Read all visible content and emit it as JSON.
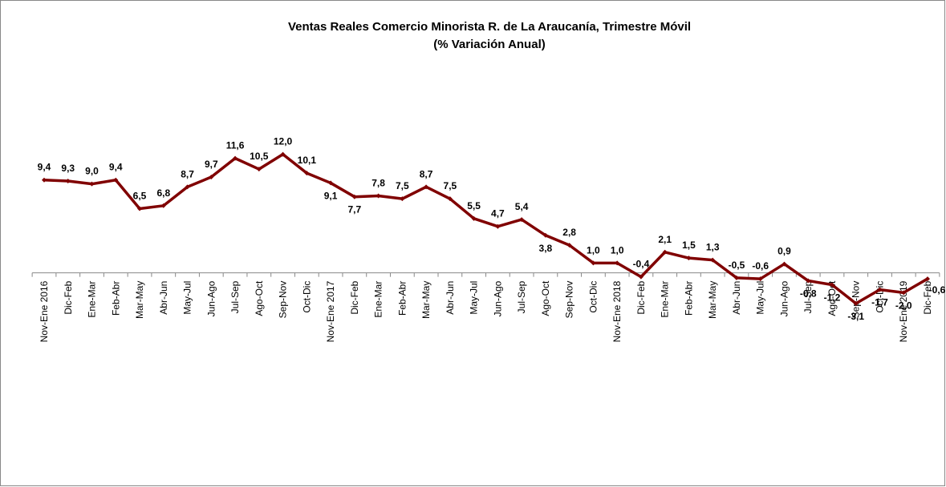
{
  "chart_data": {
    "type": "line",
    "title": "Ventas Reales Comercio Minorista  R. de La Araucanía, Trimestre Móvil",
    "subtitle": "(% Variación Anual)",
    "categories": [
      "Nov-Ene 2016",
      "Dic-Feb",
      "Ene-Mar",
      "Feb-Abr",
      "Mar-May",
      "Abr-Jun",
      "May-Jul",
      "Jun-Ago",
      "Jul-Sep",
      "Ago-Oct",
      "Sep-Nov",
      "Oct-Dic",
      "Nov-Ene 2017",
      "Dic-Feb",
      "Ene-Mar",
      "Feb-Abr",
      "Mar-May",
      "Abr-Jun",
      "May-Jul",
      "Jun-Ago",
      "Jul-Sep",
      "Ago-Oct",
      "Sep-Nov",
      "Oct-Dic",
      "Nov-Ene 2018",
      "Dic-Feb",
      "Ene-Mar",
      "Feb-Abr",
      "Mar-May",
      "Abr-Jun",
      "May-Jul",
      "Jun-Ago",
      "Jul-Sep",
      "Ago-Oct",
      "Sep-Nov",
      "Oct-Dic",
      "Nov-Ene 2019",
      "Dic-Feb"
    ],
    "values": [
      9.4,
      9.3,
      9.0,
      9.4,
      6.5,
      6.8,
      8.7,
      9.7,
      11.6,
      10.5,
      12.0,
      10.1,
      9.1,
      7.7,
      7.8,
      7.5,
      8.7,
      7.5,
      5.5,
      4.7,
      5.4,
      3.8,
      2.8,
      1.0,
      1.0,
      -0.4,
      2.1,
      1.5,
      1.3,
      -0.5,
      -0.6,
      0.9,
      -0.8,
      -1.2,
      -3.1,
      -1.7,
      -2.0,
      -0.6
    ],
    "value_labels": [
      "9,4",
      "9,3",
      "9,0",
      "9,4",
      "6,5",
      "6,8",
      "8,7",
      "9,7",
      "11,6",
      "10,5",
      "12,0",
      "10,1",
      "9,1",
      "7,7",
      "7,8",
      "7,5",
      "8,7",
      "7,5",
      "5,5",
      "4,7",
      "5,4",
      "3,8",
      "2,8",
      "1,0",
      "1,0",
      "-0,4",
      "2,1",
      "1,5",
      "1,3",
      "-0,5",
      "-0,6",
      "0,9",
      "-0,8",
      "-1,2",
      "-3,1",
      "-1,7",
      "-2,0",
      "-0,6"
    ],
    "color": "#800000",
    "ylim": [
      -4,
      14
    ]
  }
}
